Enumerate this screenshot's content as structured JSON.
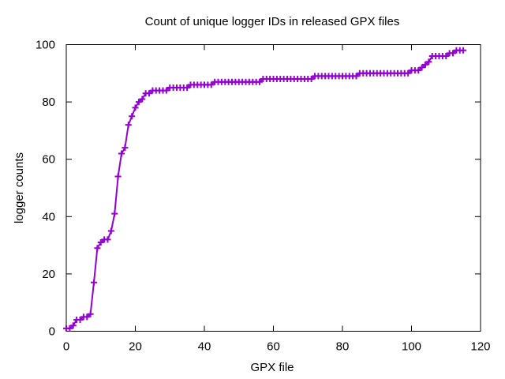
{
  "chart_data": {
    "type": "line",
    "title": "Count of unique logger IDs in released GPX files",
    "xlabel": "GPX file",
    "ylabel": "logger counts",
    "xlim": [
      0,
      120
    ],
    "ylim": [
      0,
      100
    ],
    "xticks": [
      0,
      20,
      40,
      60,
      80,
      100,
      120
    ],
    "yticks": [
      0,
      20,
      40,
      60,
      80,
      100
    ],
    "grid": false,
    "legend": "none",
    "marker": "plus",
    "line_color": "#9400d3",
    "series": [
      {
        "x": [
          0,
          1,
          2,
          3,
          4,
          5,
          6,
          7,
          8,
          9,
          10,
          11,
          12,
          13,
          14,
          15,
          16,
          17,
          18,
          19,
          20,
          21,
          22,
          23,
          24,
          25,
          26,
          27,
          28,
          29,
          30,
          31,
          32,
          33,
          34,
          35,
          36,
          37,
          38,
          39,
          40,
          41,
          42,
          43,
          44,
          45,
          46,
          47,
          48,
          49,
          50,
          51,
          52,
          53,
          54,
          55,
          56,
          57,
          58,
          59,
          60,
          61,
          62,
          63,
          64,
          65,
          66,
          67,
          68,
          69,
          70,
          71,
          72,
          73,
          74,
          75,
          76,
          77,
          78,
          79,
          80,
          81,
          82,
          83,
          84,
          85,
          86,
          87,
          88,
          89,
          90,
          91,
          92,
          93,
          94,
          95,
          96,
          97,
          98,
          99,
          100,
          101,
          102,
          103,
          104,
          105,
          106,
          107,
          108,
          109,
          110,
          111,
          112,
          113,
          114,
          115
        ],
        "y": [
          1,
          1,
          2,
          4,
          4,
          5,
          5,
          6,
          17,
          29,
          31,
          32,
          32,
          35,
          41,
          54,
          62,
          64,
          72,
          75,
          78,
          80,
          81,
          83,
          83,
          84,
          84,
          84,
          84,
          84,
          85,
          85,
          85,
          85,
          85,
          85,
          86,
          86,
          86,
          86,
          86,
          86,
          86,
          87,
          87,
          87,
          87,
          87,
          87,
          87,
          87,
          87,
          87,
          87,
          87,
          87,
          87,
          88,
          88,
          88,
          88,
          88,
          88,
          88,
          88,
          88,
          88,
          88,
          88,
          88,
          88,
          88,
          89,
          89,
          89,
          89,
          89,
          89,
          89,
          89,
          89,
          89,
          89,
          89,
          89,
          90,
          90,
          90,
          90,
          90,
          90,
          90,
          90,
          90,
          90,
          90,
          90,
          90,
          90,
          90,
          91,
          91,
          91,
          92,
          93,
          94,
          96,
          96,
          96,
          96,
          96,
          97,
          97,
          98,
          98,
          98
        ]
      }
    ]
  }
}
